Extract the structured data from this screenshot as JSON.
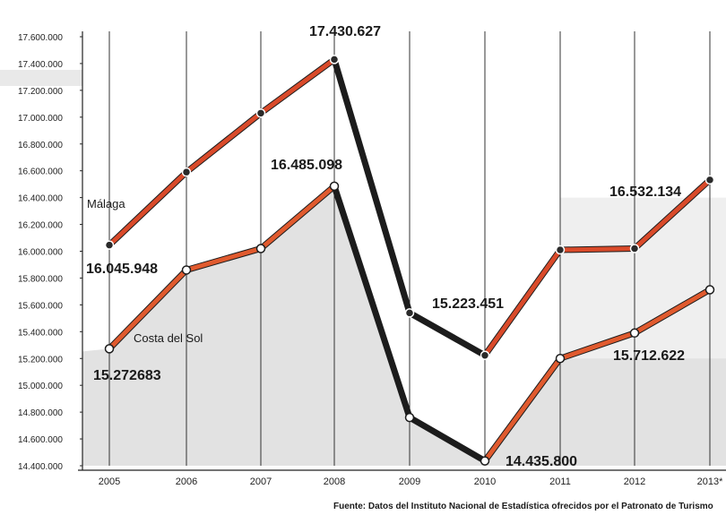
{
  "chart_data": {
    "type": "line",
    "categories": [
      "2005",
      "2006",
      "2007",
      "2008",
      "2009",
      "2010",
      "2011",
      "2012",
      "2013*"
    ],
    "ylim": [
      14400000,
      17600000
    ],
    "yticks": [
      "17.600.000",
      "17.400.000",
      "17.200.000",
      "17.000.000",
      "16.800.000",
      "16.600.000",
      "16.400.000",
      "16.200.000",
      "16.000.000",
      "15.800.000",
      "15.600.000",
      "15.400.000",
      "15.200.000",
      "15.000.000",
      "14.800.000",
      "14.600.000",
      "14.400.000"
    ],
    "grid": "vertical",
    "series": [
      {
        "name": "Málaga",
        "values": [
          16045948,
          16590000,
          17030000,
          17430627,
          15540000,
          15223451,
          16010000,
          16020000,
          16532134
        ],
        "color": "#d94a2a"
      },
      {
        "name": "Costa del Sol",
        "values": [
          15272683,
          15860000,
          16020000,
          16485098,
          14760000,
          14435800,
          15200000,
          15390000,
          15712622
        ],
        "color": "#e05a2e"
      }
    ],
    "data_labels": [
      {
        "text": "17.430.627"
      },
      {
        "text": "16.485.098"
      },
      {
        "text": "16.045.948"
      },
      {
        "text": "15.272683"
      },
      {
        "text": "15.223.451"
      },
      {
        "text": "14.435.800"
      },
      {
        "text": "16.532.134"
      },
      {
        "text": "15.712.622"
      }
    ],
    "source": "Fuente: Datos del Instituto Nacional de Estadística ofrecidos por el Patronato de Turismo"
  }
}
